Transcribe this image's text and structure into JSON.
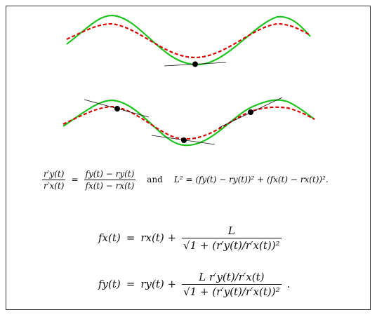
{
  "colors": {
    "curve_f": "#1ec41e",
    "curve_r": "#dd0000",
    "tangent": "#111111",
    "point": "#000000",
    "frame": "#333333"
  },
  "equations": {
    "eq1_lhs_num": "r′y(t)",
    "eq1_lhs_den": "r′x(t)",
    "eq1_eq": "=",
    "eq1_rhs_num": "fy(t) − ry(t)",
    "eq1_rhs_den": "fx(t) − rx(t)",
    "eq1_and": "and",
    "eq1_L2": "L² = (fy(t) − ry(t))² + (fx(t) − rx(t))².",
    "eq2_lhs": "fx(t)",
    "eq2_eq": "=",
    "eq2_rhs_start": "rx(t) +",
    "eq2_num": "L",
    "eq2_den": "√1 + (r′y(t)/r′x(t))²",
    "eq3_lhs": "fy(t)",
    "eq3_eq": "=",
    "eq3_rhs_start": "ry(t) +",
    "eq3_num": "L r′y(t)/r′x(t)",
    "eq3_den": "√1 + (r′y(t)/r′x(t))²",
    "eq3_end": "."
  }
}
